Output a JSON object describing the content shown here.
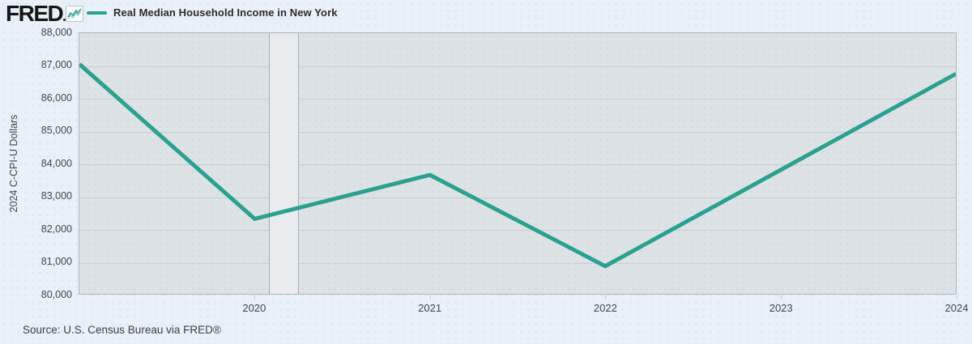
{
  "header": {
    "logo_text": "FRED",
    "logo_icon": "sparkline-chart-icon"
  },
  "legend": {
    "label": "Real Median Household Income in New York"
  },
  "chart_data": {
    "type": "line",
    "title": "Real Median Household Income in New York",
    "x": [
      2019,
      2020,
      2021,
      2022,
      2023,
      2024
    ],
    "values": [
      87050,
      82300,
      83650,
      80850,
      83800,
      86750
    ],
    "series": [
      {
        "name": "Real Median Household Income in New York",
        "x": [
          2019,
          2020,
          2021,
          2022,
          2023,
          2024
        ],
        "values": [
          87050,
          82300,
          83650,
          80850,
          83800,
          86750
        ]
      }
    ],
    "xlabel": "",
    "ylabel": "2024 C-CPI-U Dollars",
    "xlim": [
      2019,
      2024
    ],
    "ylim": [
      80000,
      88000
    ],
    "y_step": 1000,
    "y_tick_labels": [
      "80,000",
      "81,000",
      "82,000",
      "83,000",
      "84,000",
      "85,000",
      "86,000",
      "87,000",
      "88,000"
    ],
    "x_ticks": [
      2020,
      2021,
      2022,
      2023,
      2024
    ],
    "x_tick_labels": [
      "2020",
      "2021",
      "2022",
      "2023",
      "2024"
    ],
    "grid": true,
    "legend_position": "top-left",
    "line_color": "#2aa18f",
    "line_width": 5,
    "recession_band": {
      "x_start": 2020.08,
      "x_end": 2020.25
    }
  },
  "footer": {
    "source": "Source: U.S. Census Bureau via FRED®"
  },
  "colors": {
    "page_bg": "#e9f0f7",
    "plot_bg": "#dde2e6",
    "grid": "#c9ced3",
    "band_fill": "#e9ecee",
    "band_border": "#a7acb1",
    "accent": "#2aa18f"
  }
}
